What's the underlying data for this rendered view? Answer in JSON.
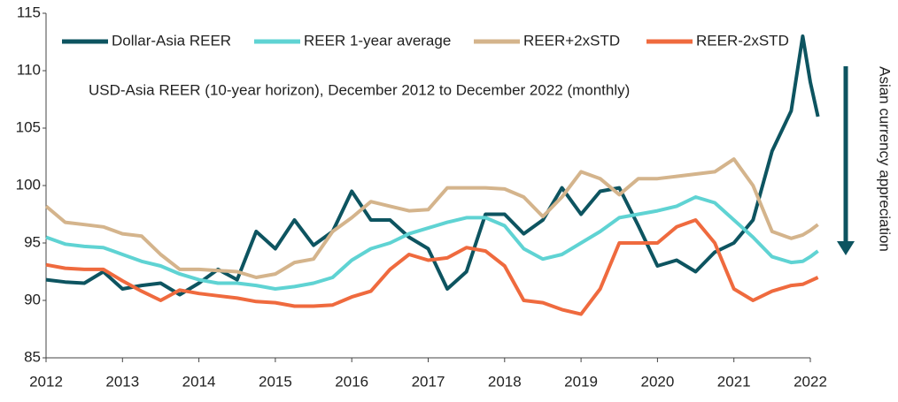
{
  "chart_data": {
    "type": "line",
    "subtitle": "USD-Asia REER (10-year horizon), December 2012 to December 2022 (monthly)",
    "arrow_label": "Asian currency appreciation",
    "xlim": [
      2012,
      2022
    ],
    "xticks": [
      2012,
      2013,
      2014,
      2015,
      2016,
      2017,
      2018,
      2019,
      2020,
      2021,
      2022
    ],
    "ylim": [
      85,
      115
    ],
    "yticks": [
      85,
      90,
      95,
      100,
      105,
      110,
      115
    ],
    "grid": false,
    "legend": "top",
    "x": [
      2012,
      2012.25,
      2012.5,
      2012.75,
      2013,
      2013.25,
      2013.5,
      2013.75,
      2014,
      2014.25,
      2014.5,
      2014.75,
      2015,
      2015.25,
      2015.5,
      2015.75,
      2016,
      2016.25,
      2016.5,
      2016.75,
      2017,
      2017.25,
      2017.5,
      2017.75,
      2018,
      2018.25,
      2018.5,
      2018.75,
      2019,
      2019.25,
      2019.5,
      2019.75,
      2020,
      2020.25,
      2020.5,
      2020.75,
      2021,
      2021.25,
      2021.5,
      2021.75,
      2021.9,
      2022,
      2022.1
    ],
    "series": [
      {
        "name": "Dollar-Asia REER",
        "color": "#0d5460",
        "values": [
          91.8,
          91.6,
          91.5,
          92.5,
          91.0,
          91.3,
          91.5,
          90.5,
          91.5,
          92.7,
          91.8,
          96.0,
          94.5,
          97.0,
          94.8,
          96.0,
          99.5,
          97.0,
          97.0,
          95.5,
          94.5,
          91.0,
          92.5,
          97.5,
          97.5,
          95.8,
          97.0,
          99.8,
          97.5,
          99.5,
          99.8,
          96.5,
          93.0,
          93.5,
          92.5,
          94.2,
          95.0,
          97.0,
          103.0,
          106.5,
          113.0,
          109.0,
          106.0
        ]
      },
      {
        "name": "REER 1-year average",
        "color": "#5fd3d3",
        "values": [
          95.5,
          94.9,
          94.7,
          94.6,
          94.0,
          93.4,
          93.0,
          92.3,
          91.8,
          91.5,
          91.5,
          91.3,
          91.0,
          91.2,
          91.5,
          92.0,
          93.5,
          94.5,
          95.0,
          95.8,
          96.3,
          96.8,
          97.2,
          97.2,
          96.5,
          94.5,
          93.6,
          94.0,
          95.0,
          96.0,
          97.2,
          97.5,
          97.8,
          98.2,
          99.0,
          98.5,
          97.0,
          95.5,
          93.8,
          93.3,
          93.4,
          93.8,
          94.3
        ]
      },
      {
        "name": "REER+2xSTD",
        "color": "#d4b48c",
        "values": [
          98.2,
          96.8,
          96.6,
          96.4,
          95.8,
          95.6,
          94.0,
          92.7,
          92.7,
          92.6,
          92.5,
          92.0,
          92.3,
          93.3,
          93.6,
          96.0,
          97.2,
          98.6,
          98.2,
          97.8,
          97.9,
          99.8,
          99.8,
          99.8,
          99.7,
          99.0,
          97.3,
          99.0,
          101.2,
          100.6,
          99.2,
          100.6,
          100.6,
          100.8,
          101.0,
          101.2,
          102.3,
          100.0,
          96.0,
          95.4,
          95.7,
          96.1,
          96.6
        ]
      },
      {
        "name": "REER-2xSTD",
        "color": "#ef6a3e",
        "values": [
          93.1,
          92.8,
          92.7,
          92.7,
          91.7,
          90.8,
          90.0,
          90.9,
          90.6,
          90.4,
          90.2,
          89.9,
          89.8,
          89.5,
          89.5,
          89.6,
          90.3,
          90.8,
          92.7,
          94.0,
          93.5,
          93.7,
          94.6,
          94.3,
          93.0,
          90.0,
          89.8,
          89.2,
          88.8,
          91.0,
          95.0,
          95.0,
          95.0,
          96.4,
          97.0,
          95.0,
          91.0,
          90.0,
          90.8,
          91.3,
          91.4,
          91.7,
          92.0
        ]
      }
    ]
  }
}
